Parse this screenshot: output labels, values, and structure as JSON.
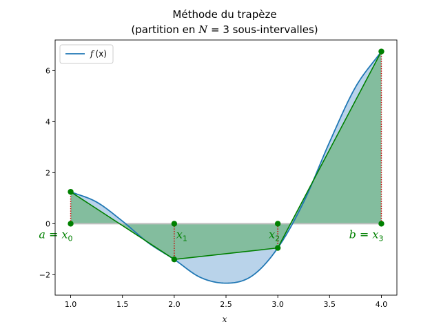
{
  "chart_data": {
    "type": "line",
    "title_line1": "Méthode du trapèze",
    "title_line2_pre": "(partition en ",
    "title_line2_var": "N",
    "title_line2_post": " = 3 sous-intervalles)",
    "xlabel": "x",
    "ylabel": "",
    "xlim": [
      0.85,
      4.15
    ],
    "ylim": [
      -2.8,
      7.2
    ],
    "xticks": [
      1.0,
      1.5,
      2.0,
      2.5,
      3.0,
      3.5,
      4.0
    ],
    "xtick_labels": [
      "1.0",
      "1.5",
      "2.0",
      "2.5",
      "3.0",
      "3.5",
      "4.0"
    ],
    "yticks": [
      -2,
      0,
      2,
      4,
      6
    ],
    "ytick_labels": [
      "−2",
      "0",
      "2",
      "4",
      "6"
    ],
    "grid": false,
    "legend": {
      "placement": "top-left",
      "label_var": "f",
      "label_arg": "(x)"
    },
    "curve": {
      "x": [
        1.0,
        1.25,
        1.5,
        1.75,
        2.0,
        2.25,
        2.5,
        2.75,
        3.0,
        3.25,
        3.5,
        3.75,
        4.0
      ],
      "y": [
        1.25,
        0.85,
        0.1,
        -0.75,
        -1.4,
        -2.1,
        -2.33,
        -2.05,
        -0.95,
        0.85,
        3.2,
        5.35,
        6.75
      ],
      "color": "#1f77b4",
      "fill": "#b9d3ea"
    },
    "trapezoid": {
      "x": [
        1.0,
        2.0,
        3.0,
        4.0
      ],
      "y": [
        1.25,
        -1.4,
        -0.95,
        6.75
      ],
      "color": "#008000",
      "fill": "#7fbc9a"
    },
    "partition_points": [
      {
        "x": 1.0,
        "lhs": "a",
        "eq": " = ",
        "var": "x",
        "sub": "0",
        "placement": "below-left"
      },
      {
        "x": 2.0,
        "lhs": "",
        "eq": "",
        "var": "x",
        "sub": "1",
        "placement": "below-right"
      },
      {
        "x": 3.0,
        "lhs": "",
        "eq": "",
        "var": "x",
        "sub": "2",
        "placement": "below-left"
      },
      {
        "x": 4.0,
        "lhs": "b",
        "eq": " = ",
        "var": "x",
        "sub": "3",
        "placement": "below-left"
      }
    ],
    "vline_color": "#cc0000",
    "baseline_color": "#c0c0c0"
  }
}
